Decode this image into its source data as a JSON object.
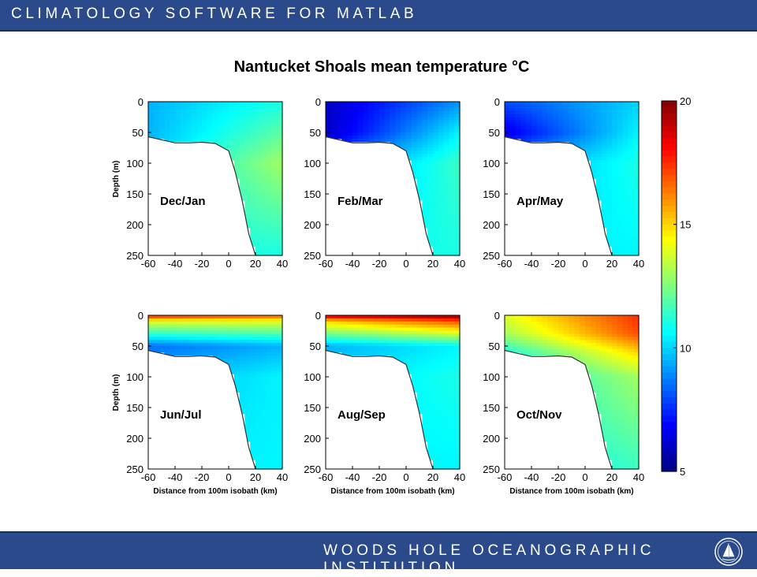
{
  "header": {
    "banner_text": "CLIMATOLOGY SOFTWARE FOR MATLAB"
  },
  "footer": {
    "banner_text": "WOODS HOLE OCEANOGRAPHIC INSTITUTION",
    "logo_icon": "whoi-sailboat-logo-icon"
  },
  "chart_data": {
    "type": "heatmap",
    "title": "Nantucket Shoals mean temperature °C",
    "ylabel": "Depth (m)",
    "xlabel": "Distance from 100m isobath (km)",
    "xlim": [
      -60,
      40
    ],
    "ylim": [
      0,
      250
    ],
    "xticks": [
      "-60",
      "-40",
      "-20",
      "0",
      "20",
      "40"
    ],
    "yticks": [
      "0",
      "50",
      "100",
      "150",
      "200",
      "250"
    ],
    "colorbar": {
      "min": 5,
      "max": 20,
      "ticks": [
        "5",
        "10",
        "15",
        "20"
      ],
      "colormap": "jet"
    },
    "bathymetry": {
      "x": [
        -60,
        -50,
        -40,
        -30,
        -20,
        -10,
        0,
        5,
        10,
        15,
        20
      ],
      "depth": [
        57,
        62,
        67,
        67,
        66,
        68,
        80,
        115,
        160,
        215,
        250
      ]
    },
    "panels": [
      {
        "label": "Dec/Jan",
        "temperature_profile": {
          "depth": [
            0,
            50,
            100,
            250
          ],
          "inshore": [
            9.5,
            9.5,
            10.0,
            11.0
          ],
          "offshore": [
            11.0,
            12.0,
            13.0,
            11.0
          ]
        }
      },
      {
        "label": "Feb/Mar",
        "temperature_profile": {
          "depth": [
            0,
            50,
            100,
            250
          ],
          "inshore": [
            6.0,
            6.0,
            8.5,
            10.5
          ],
          "offshore": [
            9.0,
            10.5,
            11.5,
            11.0
          ]
        }
      },
      {
        "label": "Apr/May",
        "temperature_profile": {
          "depth": [
            0,
            50,
            100,
            250
          ],
          "inshore": [
            8.0,
            6.5,
            9.0,
            10.5
          ],
          "offshore": [
            10.0,
            10.5,
            11.0,
            10.5
          ]
        }
      },
      {
        "label": "Jun/Jul",
        "temperature_profile": {
          "depth": [
            0,
            10,
            50,
            100,
            250
          ],
          "inshore": [
            18.0,
            14.0,
            8.5,
            9.5,
            10.5
          ],
          "offshore": [
            17.0,
            14.0,
            9.5,
            10.5,
            10.5
          ]
        }
      },
      {
        "label": "Aug/Sep",
        "temperature_profile": {
          "depth": [
            0,
            10,
            50,
            100,
            250
          ],
          "inshore": [
            19.0,
            15.0,
            9.5,
            10.0,
            10.5
          ],
          "offshore": [
            20.0,
            17.0,
            10.5,
            11.0,
            10.5
          ]
        }
      },
      {
        "label": "Oct/Nov",
        "temperature_profile": {
          "depth": [
            0,
            30,
            60,
            100,
            250
          ],
          "inshore": [
            14.0,
            13.0,
            11.0,
            10.5,
            10.5
          ],
          "offshore": [
            17.5,
            17.0,
            15.0,
            13.0,
            11.5
          ]
        }
      }
    ]
  }
}
